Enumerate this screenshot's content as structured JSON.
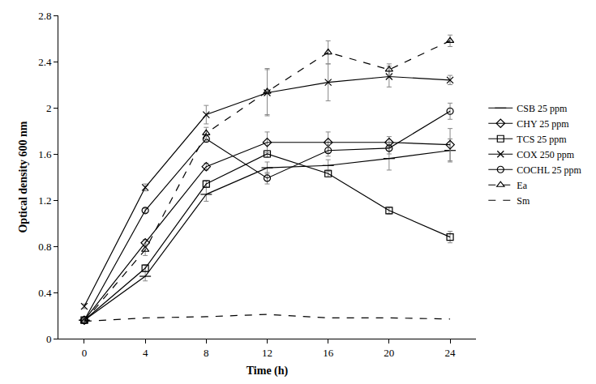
{
  "chart_data": {
    "type": "line",
    "x_label": "Time (h)",
    "y_label": "Optical density 600 nm",
    "x": [
      0,
      4,
      8,
      12,
      16,
      20,
      24
    ],
    "xlim": [
      -1.7,
      25.7
    ],
    "xticks": [
      0,
      4,
      8,
      12,
      16,
      20,
      24
    ],
    "ylim": [
      0,
      2.8
    ],
    "yticks": [
      0,
      0.4,
      0.8,
      1.2,
      1.6,
      2,
      2.4,
      2.8
    ],
    "grid": false,
    "legend": "right",
    "series": [
      {
        "name": "CSB 25 ppm",
        "color": "#000000",
        "marker": "dash",
        "line_style": "solid",
        "values": [
          0.16,
          0.54,
          1.25,
          1.48,
          1.5,
          1.56,
          1.63
        ],
        "errors": [
          0.01,
          0.04,
          0.06,
          0.05,
          0.05,
          0.1,
          0.1
        ]
      },
      {
        "name": "CHY 25 ppm",
        "color": "#000000",
        "marker": "diamond",
        "line_style": "solid",
        "values": [
          0.16,
          0.83,
          1.49,
          1.7,
          1.7,
          1.7,
          1.68
        ],
        "errors": [
          0.01,
          0.03,
          0.03,
          0.09,
          0.09,
          0.05,
          0.14
        ]
      },
      {
        "name": "TCS 25 ppm",
        "color": "#000000",
        "marker": "square",
        "line_style": "solid",
        "values": [
          0.16,
          0.61,
          1.34,
          1.6,
          1.43,
          1.11,
          0.88
        ],
        "errors": [
          0.01,
          0.03,
          0.03,
          0.03,
          0.03,
          0.03,
          0.05
        ]
      },
      {
        "name": "COX 250 ppm",
        "color": "#000000",
        "marker": "x",
        "line_style": "solid",
        "values": [
          0.28,
          1.31,
          1.94,
          2.13,
          2.22,
          2.27,
          2.24
        ],
        "errors": [
          0.02,
          0.03,
          0.08,
          0.2,
          0.16,
          0.09,
          0.04
        ]
      },
      {
        "name": "COCHL 25 ppm",
        "color": "#000000",
        "marker": "circle",
        "line_style": "solid",
        "values": [
          0.16,
          1.11,
          1.73,
          1.39,
          1.63,
          1.65,
          1.97
        ],
        "errors": [
          0.01,
          0.02,
          0.03,
          0.05,
          0.05,
          0.05,
          0.07
        ]
      },
      {
        "name": "Ea",
        "color": "#000000",
        "marker": "triangle",
        "line_style": "dashed",
        "values": [
          0.15,
          0.77,
          1.78,
          2.14,
          2.48,
          2.33,
          2.58
        ],
        "errors": [
          0.01,
          0.05,
          0.05,
          0.2,
          0.1,
          0.05,
          0.05
        ]
      },
      {
        "name": "Sm",
        "color": "#000000",
        "marker": "none",
        "line_style": "dashed",
        "values": [
          0.15,
          0.18,
          0.19,
          0.21,
          0.18,
          0.18,
          0.17
        ]
      }
    ]
  }
}
